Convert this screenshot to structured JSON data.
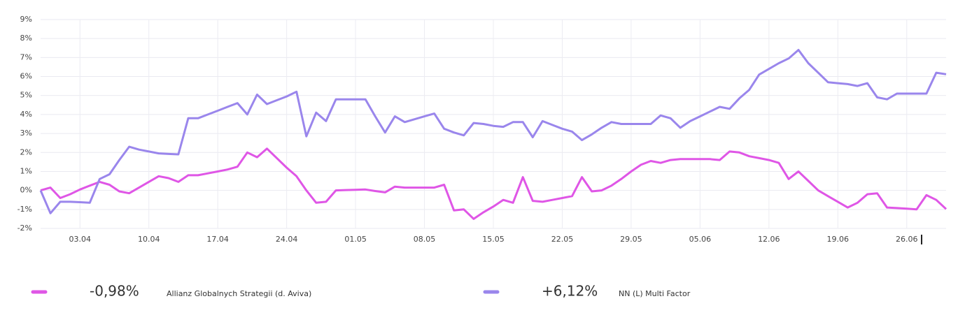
{
  "chart_data": {
    "type": "line",
    "categories": [
      null,
      null,
      null,
      null,
      "03.04",
      null,
      null,
      null,
      null,
      null,
      null,
      "10.04",
      null,
      null,
      null,
      null,
      null,
      null,
      "17.04",
      null,
      null,
      null,
      null,
      null,
      null,
      "24.04",
      null,
      null,
      null,
      null,
      null,
      null,
      "01.05",
      null,
      null,
      null,
      null,
      null,
      null,
      "08.05",
      null,
      null,
      null,
      null,
      null,
      null,
      "15.05",
      null,
      null,
      null,
      null,
      null,
      null,
      "22.05",
      null,
      null,
      null,
      null,
      null,
      null,
      "29.05",
      null,
      null,
      null,
      null,
      null,
      null,
      "05.06",
      null,
      null,
      null,
      null,
      null,
      null,
      "12.06",
      null,
      null,
      null,
      null,
      null,
      null,
      "19.06",
      null,
      null,
      null,
      null,
      null,
      null,
      "26.06",
      null,
      null,
      null,
      null
    ],
    "series": [
      {
        "name": "Allianz Globalnych Strategii (d. Aviva)",
        "color": "#df56e6",
        "value_label": "-0,98%",
        "values": [
          0.0,
          0.15,
          -0.4,
          -0.2,
          0.05,
          0.25,
          0.45,
          0.3,
          -0.05,
          -0.15,
          0.15,
          0.45,
          0.75,
          0.65,
          0.45,
          0.8,
          0.8,
          0.9,
          1.0,
          1.1,
          1.25,
          2.0,
          1.75,
          2.2,
          1.7,
          1.2,
          0.75,
          0.0,
          -0.65,
          -0.6,
          0.0,
          0.02,
          0.03,
          0.05,
          -0.03,
          -0.1,
          0.2,
          0.15,
          0.15,
          0.15,
          0.15,
          0.3,
          -1.05,
          -1.0,
          -1.5,
          -1.15,
          -0.85,
          -0.5,
          -0.65,
          0.7,
          -0.55,
          -0.6,
          -0.5,
          -0.4,
          -0.3,
          0.7,
          -0.05,
          0.0,
          0.25,
          0.6,
          1.0,
          1.35,
          1.55,
          1.45,
          1.6,
          1.65,
          1.65,
          1.65,
          1.65,
          1.6,
          2.05,
          2.0,
          1.8,
          1.7,
          1.6,
          1.45,
          0.6,
          1.0,
          0.5,
          0.0,
          -0.3,
          -0.6,
          -0.9,
          -0.65,
          -0.2,
          -0.15,
          -0.9,
          -0.93,
          -0.96,
          -1.0,
          -0.25,
          -0.5,
          -0.98
        ]
      },
      {
        "name": "NN (L) Multi Factor",
        "color": "#9a86ec",
        "value_label": "+6,12%",
        "values": [
          0.0,
          -1.2,
          -0.6,
          -0.6,
          -0.62,
          -0.65,
          0.6,
          0.85,
          1.6,
          2.3,
          2.15,
          2.05,
          1.95,
          1.92,
          1.9,
          3.8,
          3.8,
          4.0,
          4.2,
          4.4,
          4.6,
          4.0,
          5.05,
          4.55,
          4.75,
          4.95,
          5.2,
          2.85,
          4.1,
          3.65,
          4.8,
          4.8,
          4.8,
          4.8,
          3.9,
          3.05,
          3.9,
          3.6,
          3.75,
          3.9,
          4.05,
          3.25,
          3.05,
          2.9,
          3.55,
          3.5,
          3.4,
          3.35,
          3.6,
          3.6,
          2.8,
          3.65,
          3.45,
          3.25,
          3.1,
          2.65,
          2.95,
          3.3,
          3.6,
          3.5,
          3.5,
          3.5,
          3.5,
          3.95,
          3.8,
          3.3,
          3.65,
          3.9,
          4.15,
          4.4,
          4.3,
          4.85,
          5.3,
          6.1,
          6.4,
          6.7,
          6.95,
          7.4,
          6.7,
          6.2,
          5.7,
          5.65,
          5.6,
          5.5,
          5.65,
          4.9,
          4.8,
          5.1,
          5.1,
          5.1,
          5.1,
          6.2,
          6.12
        ]
      }
    ],
    "ylim": [
      -2,
      9
    ],
    "yticks": [
      {
        "value": -2,
        "label": "-2%"
      },
      {
        "value": -1,
        "label": "-1%"
      },
      {
        "value": 0,
        "label": "0%"
      },
      {
        "value": 1,
        "label": "1%"
      },
      {
        "value": 2,
        "label": "2%"
      },
      {
        "value": 3,
        "label": "3%"
      },
      {
        "value": 4,
        "label": "4%"
      },
      {
        "value": 5,
        "label": "5%"
      },
      {
        "value": 6,
        "label": "6%"
      },
      {
        "value": 7,
        "label": "7%"
      },
      {
        "value": 8,
        "label": "8%"
      },
      {
        "value": 9,
        "label": "9%"
      }
    ],
    "grid": true
  }
}
